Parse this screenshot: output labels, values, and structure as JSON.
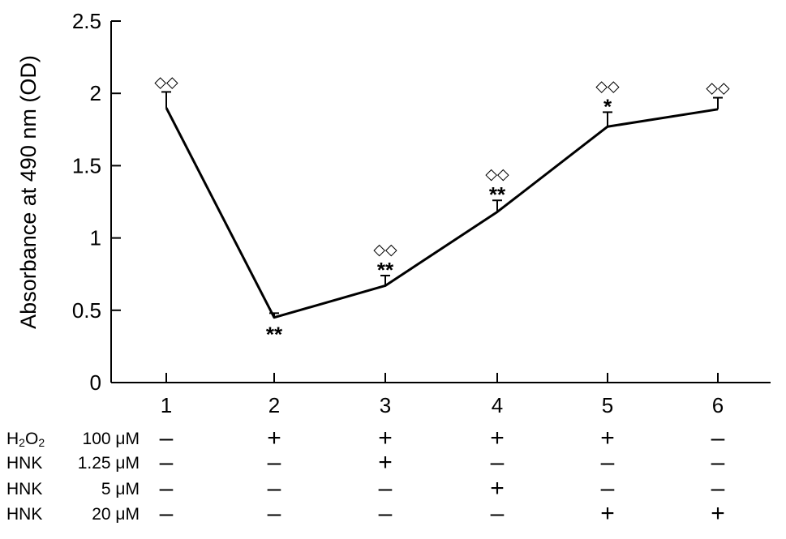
{
  "chart_data": {
    "type": "line",
    "ylabel": "Absorbance at 490 nm (OD)",
    "ylim": [
      0,
      2.5
    ],
    "yticks": [
      "0",
      "0.5",
      "1",
      "1.5",
      "2",
      "2.5"
    ],
    "categories": [
      "1",
      "2",
      "3",
      "4",
      "5",
      "6"
    ],
    "series": [
      {
        "values": [
          1.9,
          0.45,
          0.67,
          1.18,
          1.77,
          1.89
        ],
        "error_upper": [
          0.11,
          0.03,
          0.07,
          0.08,
          0.1,
          0.08
        ]
      }
    ],
    "annotations": {
      "significance": [
        "",
        "**",
        "**",
        "**",
        "*",
        ""
      ],
      "diamonds": [
        "◇◇",
        "",
        "◇◇",
        "◇◇",
        "◇◇",
        "◇◇"
      ]
    },
    "line_color": "#000000"
  },
  "conditions": [
    {
      "name_main": "H",
      "name_sub": "2",
      "name_tail": "O",
      "name_sub2": "2",
      "dose": "100 μM",
      "signs": [
        "–",
        "+",
        "+",
        "+",
        "+",
        "–"
      ]
    },
    {
      "name_main": "HNK",
      "name_sub": "",
      "name_tail": "",
      "name_sub2": "",
      "dose": "1.25 μM",
      "signs": [
        "–",
        "–",
        "+",
        "–",
        "–",
        "–"
      ]
    },
    {
      "name_main": "HNK",
      "name_sub": "",
      "name_tail": "",
      "name_sub2": "",
      "dose": "5 μM",
      "signs": [
        "–",
        "–",
        "–",
        "+",
        "–",
        "–"
      ]
    },
    {
      "name_main": "HNK",
      "name_sub": "",
      "name_tail": "",
      "name_sub2": "",
      "dose": "20 μM",
      "signs": [
        "–",
        "–",
        "–",
        "–",
        "+",
        "+"
      ]
    }
  ]
}
